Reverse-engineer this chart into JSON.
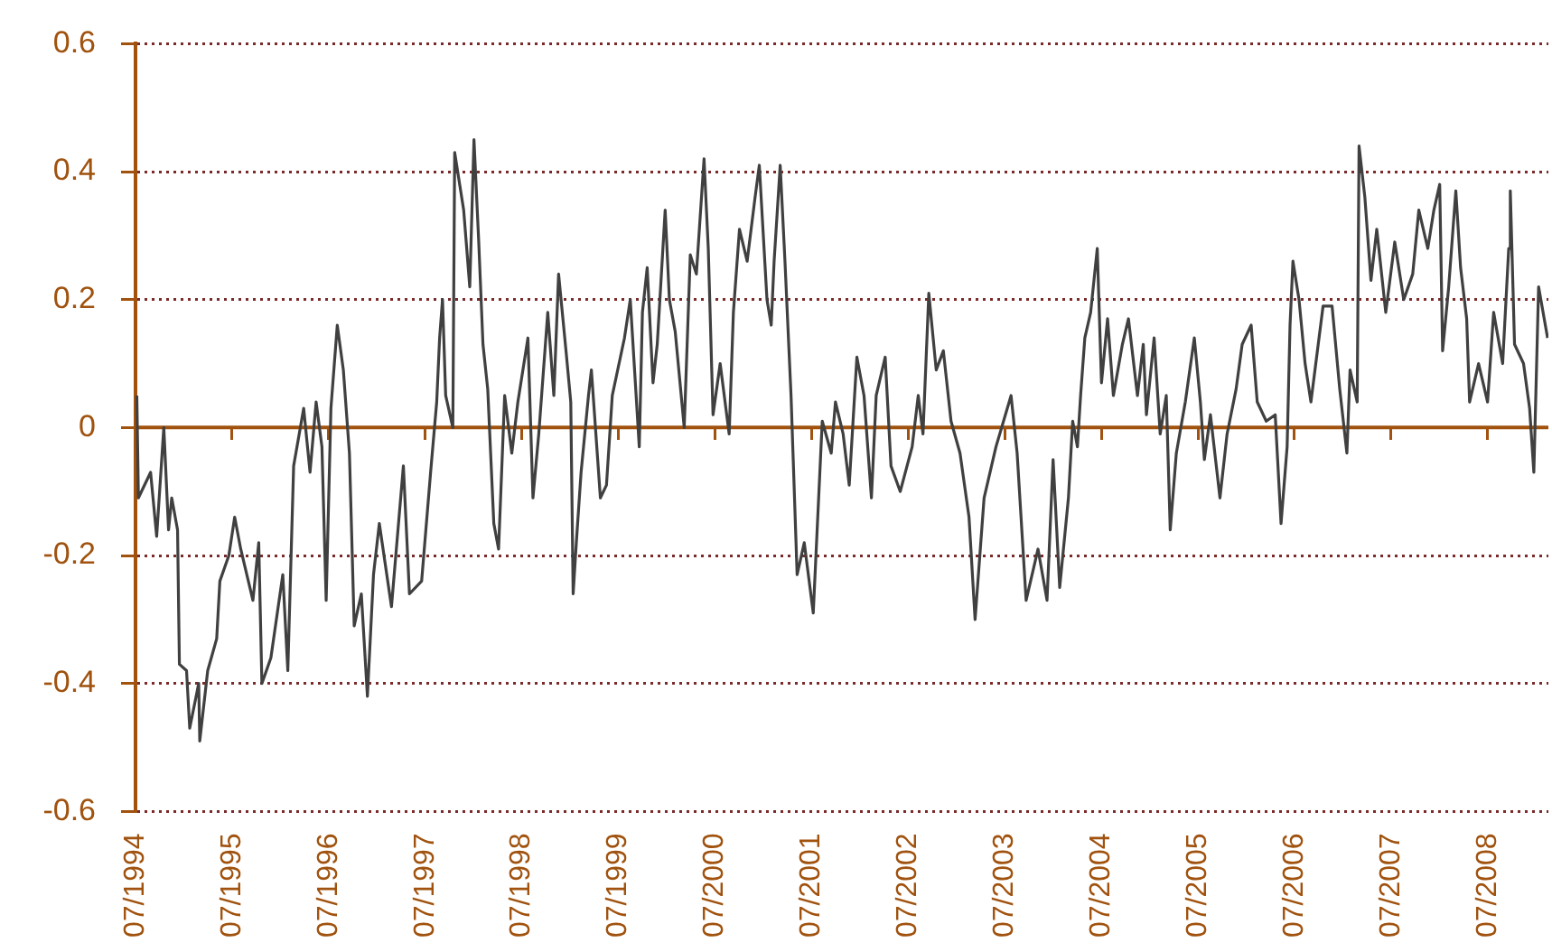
{
  "chart_data": {
    "type": "line",
    "x": [
      "1994-07-06",
      "1994-07-12",
      "1994-08-27",
      "1994-09-19",
      "1994-10-16",
      "1994-11-03",
      "1994-11-15",
      "1994-12-07",
      "1994-12-14",
      "1995-01-10",
      "1995-01-22",
      "1995-02-25",
      "1995-03-01",
      "1995-03-31",
      "1995-05-04",
      "1995-05-16",
      "1995-06-19",
      "1995-07-11",
      "1995-08-03",
      "1995-09-18",
      "1995-10-10",
      "1995-10-22",
      "1995-11-25",
      "1996-01-09",
      "1996-01-28",
      "1996-02-19",
      "1996-03-28",
      "1996-04-21",
      "1996-05-14",
      "1996-06-05",
      "1996-06-21",
      "1996-07-09",
      "1996-08-02",
      "1996-08-25",
      "1996-09-17",
      "1996-10-05",
      "1996-11-01",
      "1996-11-24",
      "1996-12-17",
      "1997-01-08",
      "1997-02-23",
      "1997-04-09",
      "1997-05-02",
      "1997-06-17",
      "1997-07-21",
      "1997-08-13",
      "1997-08-24",
      "1997-09-04",
      "1997-09-16",
      "1997-10-13",
      "1997-10-20",
      "1997-11-23",
      "1997-12-16",
      "1998-01-01",
      "1998-01-19",
      "1998-02-04",
      "1998-02-22",
      "1998-03-17",
      "1998-04-04",
      "1998-04-27",
      "1998-05-24",
      "1998-06-16",
      "1998-07-24",
      "1998-08-12",
      "1998-09-03",
      "1998-10-07",
      "1998-10-30",
      "1998-11-17",
      "1998-12-15",
      "1999-01-02",
      "1999-01-11",
      "1999-01-23",
      "1999-02-10",
      "1999-03-10",
      "1999-03-21",
      "1999-04-24",
      "1999-05-17",
      "1999-06-08",
      "1999-07-24",
      "1999-08-15",
      "1999-09-18",
      "1999-09-30",
      "1999-10-18",
      "1999-11-09",
      "1999-11-25",
      "1999-12-25",
      "2000-01-10",
      "2000-02-01",
      "2000-03-06",
      "2000-03-29",
      "2000-04-21",
      "2000-05-20",
      "2000-06-05",
      "2000-06-23",
      "2000-07-20",
      "2000-08-23",
      "2000-09-08",
      "2000-10-01",
      "2000-10-30",
      "2000-11-29",
      "2000-12-15",
      "2001-01-13",
      "2001-01-29",
      "2001-02-09",
      "2001-03-04",
      "2001-03-22",
      "2001-04-14",
      "2001-05-07",
      "2001-06-03",
      "2001-07-07",
      "2001-08-10",
      "2001-09-13",
      "2001-09-29",
      "2001-10-28",
      "2001-11-20",
      "2001-12-19",
      "2002-01-15",
      "2002-02-12",
      "2002-03-02",
      "2002-04-05",
      "2002-04-27",
      "2002-06-01",
      "2002-07-16",
      "2002-08-08",
      "2002-08-26",
      "2002-09-17",
      "2002-10-15",
      "2002-11-11",
      "2002-12-10",
      "2003-01-13",
      "2003-02-16",
      "2003-03-11",
      "2003-04-14",
      "2003-05-29",
      "2003-07-25",
      "2003-08-17",
      "2003-09-20",
      "2003-11-04",
      "2003-12-08",
      "2003-12-31",
      "2004-01-25",
      "2004-02-27",
      "2004-03-14",
      "2004-04-01",
      "2004-04-13",
      "2004-04-29",
      "2004-05-21",
      "2004-06-15",
      "2004-07-01",
      "2004-07-24",
      "2004-08-15",
      "2004-09-18",
      "2004-10-11",
      "2004-11-14",
      "2004-12-06",
      "2004-12-18",
      "2005-01-16",
      "2005-02-08",
      "2005-03-03",
      "2005-03-18",
      "2005-04-10",
      "2005-05-14",
      "2005-06-17",
      "2005-07-10",
      "2005-07-25",
      "2005-08-17",
      "2005-09-22",
      "2005-10-19",
      "2005-11-22",
      "2005-12-15",
      "2006-01-18",
      "2006-02-10",
      "2006-03-16",
      "2006-04-19",
      "2006-05-11",
      "2006-06-03",
      "2006-06-14",
      "2006-06-25",
      "2006-07-18",
      "2006-08-10",
      "2006-09-01",
      "2006-10-17",
      "2006-11-20",
      "2006-12-19",
      "2007-01-15",
      "2007-01-27",
      "2007-02-23",
      "2007-03-02",
      "2007-03-24",
      "2007-04-16",
      "2007-05-08",
      "2007-06-11",
      "2007-07-15",
      "2007-08-18",
      "2007-09-21",
      "2007-10-14",
      "2007-11-17",
      "2007-12-10",
      "2008-01-01",
      "2008-01-12",
      "2008-02-04",
      "2008-03-02",
      "2008-03-20",
      "2008-04-12",
      "2008-04-23",
      "2008-05-27",
      "2008-06-30",
      "2008-07-23",
      "2008-08-26",
      "2008-09-18",
      "2008-09-24",
      "2008-10-10",
      "2008-11-13",
      "2008-12-06",
      "2008-12-22",
      "2009-01-09",
      "2009-02-12"
    ],
    "series": [
      {
        "color": "#404040",
        "values": [
          0.05,
          -0.11,
          -0.07,
          -0.17,
          0,
          -0.16,
          -0.11,
          -0.16,
          -0.37,
          -0.38,
          -0.47,
          -0.4,
          -0.49,
          -0.38,
          -0.33,
          -0.24,
          -0.2,
          -0.14,
          -0.19,
          -0.27,
          -0.18,
          -0.4,
          -0.36,
          -0.23,
          -0.38,
          -0.06,
          0.03,
          -0.07,
          0.04,
          -0.03,
          -0.27,
          0.03,
          0.16,
          0.09,
          -0.04,
          -0.31,
          -0.26,
          -0.42,
          -0.23,
          -0.15,
          -0.28,
          -0.06,
          -0.26,
          -0.24,
          -0.07,
          0.04,
          0.14,
          0.2,
          0.05,
          0,
          0.43,
          0.34,
          0.22,
          0.45,
          0.29,
          0.13,
          0.06,
          -0.15,
          -0.19,
          0.05,
          -0.04,
          0.04,
          0.14,
          -0.11,
          -0.01,
          0.18,
          0.05,
          0.24,
          0.12,
          0.04,
          -0.26,
          -0.18,
          -0.07,
          0.05,
          0.09,
          -0.11,
          -0.09,
          0.05,
          0.14,
          0.2,
          -0.03,
          0.18,
          0.25,
          0.07,
          0.13,
          0.34,
          0.2,
          0.15,
          0,
          0.27,
          0.24,
          0.42,
          0.28,
          0.02,
          0.1,
          -0.01,
          0.18,
          0.31,
          0.26,
          0.36,
          0.41,
          0.2,
          0.16,
          0.26,
          0.41,
          0.26,
          0.05,
          -0.23,
          -0.18,
          -0.29,
          0.01,
          -0.04,
          0.04,
          -0.01,
          -0.09,
          0.11,
          0.05,
          -0.11,
          0.05,
          0.11,
          -0.06,
          -0.1,
          -0.03,
          0.05,
          -0.01,
          0.21,
          0.09,
          0.12,
          0.01,
          -0.04,
          -0.14,
          -0.3,
          -0.11,
          -0.03,
          0.05,
          -0.04,
          -0.27,
          -0.19,
          -0.27,
          -0.05,
          -0.25,
          -0.11,
          0.01,
          -0.03,
          0.05,
          0.14,
          0.18,
          0.28,
          0.07,
          0.17,
          0.05,
          0.13,
          0.17,
          0.05,
          0.13,
          0.02,
          0.14,
          -0.01,
          0.05,
          -0.16,
          -0.04,
          0.04,
          0.14,
          0.04,
          -0.05,
          0.02,
          -0.11,
          -0.01,
          0.06,
          0.13,
          0.16,
          0.04,
          0.01,
          0.02,
          -0.15,
          -0.03,
          0.16,
          0.26,
          0.2,
          0.1,
          0.04,
          0.19,
          0.19,
          0.06,
          -0.04,
          0.09,
          0.04,
          0.44,
          0.36,
          0.23,
          0.31,
          0.18,
          0.29,
          0.2,
          0.24,
          0.34,
          0.28,
          0.34,
          0.38,
          0.12,
          0.22,
          0.37,
          0.25,
          0.17,
          0.04,
          0.1,
          0.04,
          0.18,
          0.1,
          0.28,
          0.37,
          0.13,
          0.1,
          0.03,
          -0.07,
          0.22,
          0.14
        ]
      }
    ],
    "xlim": [
      "1994-07-01",
      "2009-02-15"
    ],
    "xticks": [
      {
        "value": "1994-07",
        "label": "07/1994"
      },
      {
        "value": "1995-07",
        "label": "07/1995"
      },
      {
        "value": "1996-07",
        "label": "07/1996"
      },
      {
        "value": "1997-07",
        "label": "07/1997"
      },
      {
        "value": "1998-07",
        "label": "07/1998"
      },
      {
        "value": "1999-07",
        "label": "07/1999"
      },
      {
        "value": "2000-07",
        "label": "07/2000"
      },
      {
        "value": "2001-07",
        "label": "07/2001"
      },
      {
        "value": "2002-07",
        "label": "07/2002"
      },
      {
        "value": "2003-07",
        "label": "07/2003"
      },
      {
        "value": "2004-07",
        "label": "07/2004"
      },
      {
        "value": "2005-07",
        "label": "07/2005"
      },
      {
        "value": "2006-07",
        "label": "07/2006"
      },
      {
        "value": "2007-07",
        "label": "07/2007"
      },
      {
        "value": "2008-07",
        "label": "07/2008"
      }
    ],
    "ylim": [
      -0.6,
      0.6
    ],
    "yticks": [
      -0.6,
      -0.4,
      -0.2,
      0,
      0.2,
      0.4,
      0.6
    ],
    "ref_lines": [
      {
        "axis": "y",
        "value": 0,
        "color": "#a0520e"
      }
    ],
    "grid": "y",
    "legend": false,
    "marker": "none",
    "line_style": "solid"
  }
}
